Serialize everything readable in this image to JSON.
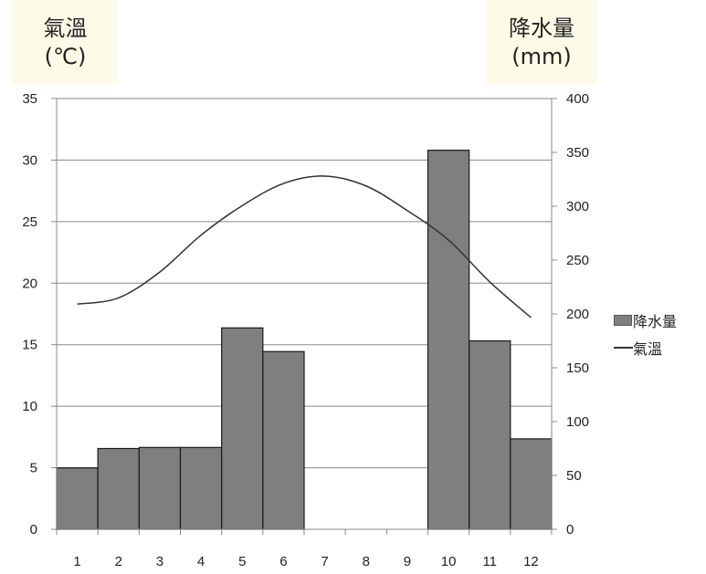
{
  "axis_titles": {
    "left": [
      "氣溫",
      "(℃)"
    ],
    "right": [
      "降水量",
      "(mm)"
    ]
  },
  "legend": {
    "precip_label": "降水量",
    "temp_label": "氣溫"
  },
  "chart_data": {
    "type": "bar+line",
    "categories": [
      "1",
      "2",
      "3",
      "4",
      "5",
      "6",
      "7",
      "8",
      "9",
      "10",
      "11",
      "12"
    ],
    "series": [
      {
        "name": "降水量",
        "type": "bar",
        "axis": "right",
        "values": [
          57,
          75,
          76,
          76,
          187,
          165,
          0,
          0,
          0,
          352,
          175,
          84
        ]
      },
      {
        "name": "氣溫",
        "type": "line",
        "axis": "left",
        "values": [
          18.3,
          18.8,
          20.9,
          23.9,
          26.3,
          28.1,
          28.7,
          27.9,
          25.9,
          23.5,
          20.1,
          17.2
        ]
      }
    ],
    "y_left": {
      "range": [
        0,
        35
      ],
      "ticks": [
        0,
        5,
        10,
        15,
        20,
        25,
        30,
        35
      ]
    },
    "y_right": {
      "range": [
        0,
        400
      ],
      "ticks": [
        0,
        50,
        100,
        150,
        200,
        250,
        300,
        350,
        400
      ]
    },
    "grid": true,
    "legend_position": "right"
  },
  "colors": {
    "bar_fill": "#7f7f7f",
    "bar_stroke": "#1a1a1a",
    "line": "#333333",
    "grid": "#888888",
    "axis": "#888888",
    "title_bg": "#fdfbe8"
  }
}
